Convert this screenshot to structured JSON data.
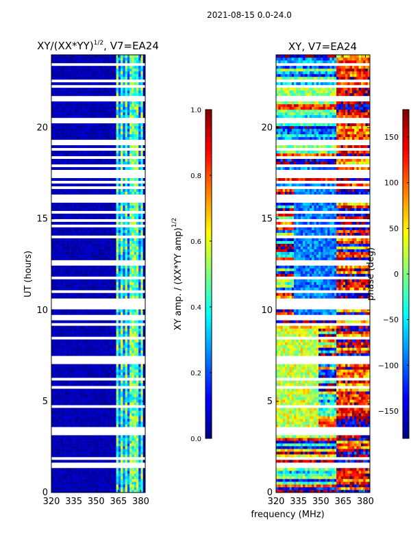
{
  "suptitle": "2021-08-15 0.0-24.0",
  "colors": {
    "background": "#ffffff",
    "gap_rows": "#ffffff",
    "axis": "#000000",
    "jet": [
      "#00007f",
      "#0000ff",
      "#007fff",
      "#00ffff",
      "#7fff7f",
      "#ffff00",
      "#ff7f00",
      "#ff0000",
      "#7f0000"
    ]
  },
  "chart_data": [
    {
      "type": "heatmap",
      "name": "amplitude",
      "title_main": "XY/(XX*YY)",
      "title_exp": "1/2",
      "title_suffix": ", V7=EA24",
      "xlabel": "",
      "ylabel": "UT (hours)",
      "xlim": [
        320,
        383
      ],
      "ylim": [
        0,
        24
      ],
      "xticks": [
        320,
        335,
        350,
        365,
        380
      ],
      "yticks": [
        0,
        5,
        10,
        15,
        20
      ],
      "colorbar": {
        "label_main": "XY amp. / (XX*YY amp)",
        "label_exp": "1/2",
        "range": [
          0.0,
          1.0
        ],
        "ticks": [
          "0.0",
          "0.2",
          "0.4",
          "0.6",
          "0.8",
          "1.0"
        ]
      },
      "bright_band_mhz": [
        363,
        382
      ],
      "bright_channels_mhz": [
        364.5,
        367,
        370.5,
        374,
        377,
        380.5
      ],
      "gap_hours": [
        1.4,
        1.55,
        1.85,
        3.3,
        3.5,
        4.75,
        5.8,
        6.2,
        7.2,
        7.45,
        8.5,
        9.25,
        9.6,
        10.2,
        10.5,
        11.0,
        11.8,
        12.6,
        14.0,
        14.6,
        14.9,
        15.4,
        16.0,
        16.2,
        16.7,
        17.0,
        17.4,
        17.6,
        17.9,
        18.4,
        18.8,
        19.1,
        19.2,
        20.4,
        21.5,
        21.6,
        22.3,
        22.6,
        23.5
      ]
    },
    {
      "type": "heatmap",
      "name": "phase",
      "title_main": "XY, V7=EA24",
      "xlabel": "frequency (MHz)",
      "ylabel": "",
      "xlim": [
        320,
        383
      ],
      "ylim": [
        0,
        24
      ],
      "xticks": [
        320,
        335,
        350,
        365,
        380
      ],
      "yticks": [
        0,
        5,
        10,
        15,
        20
      ],
      "colorbar": {
        "label_main": "phase (deg)",
        "range": [
          -180,
          180
        ],
        "ticks": [
          "−150",
          "−100",
          "−50",
          "0",
          "50",
          "100",
          "150"
        ]
      },
      "gap_hours": [
        1.4,
        1.55,
        1.85,
        3.3,
        3.5,
        4.75,
        5.8,
        6.2,
        7.2,
        7.45,
        8.5,
        9.25,
        9.6,
        10.2,
        10.5,
        11.0,
        11.8,
        12.6,
        14.0,
        14.6,
        14.9,
        15.4,
        16.0,
        16.2,
        16.7,
        17.0,
        17.4,
        17.6,
        17.9,
        18.4,
        18.8,
        19.1,
        19.2,
        20.4,
        21.5,
        21.6,
        22.3,
        22.6,
        23.5
      ]
    }
  ]
}
